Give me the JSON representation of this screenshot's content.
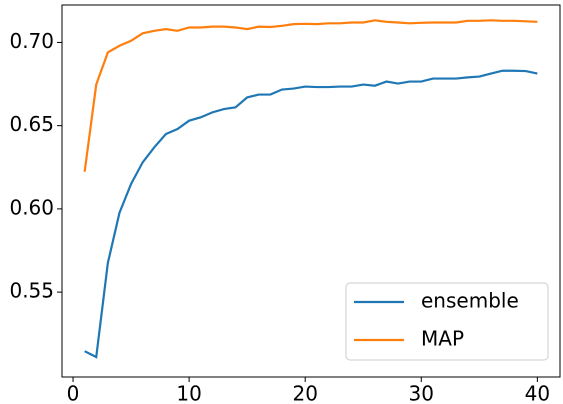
{
  "chart_data": {
    "type": "line",
    "x": [
      1,
      2,
      3,
      4,
      5,
      6,
      7,
      8,
      9,
      10,
      11,
      12,
      13,
      14,
      15,
      16,
      17,
      18,
      19,
      20,
      21,
      22,
      23,
      24,
      25,
      26,
      27,
      28,
      29,
      30,
      31,
      32,
      33,
      34,
      35,
      36,
      37,
      38,
      39,
      40
    ],
    "series": [
      {
        "name": "ensemble",
        "color": "#1f77b4",
        "values": [
          0.5145,
          0.511,
          0.5675,
          0.5976,
          0.615,
          0.628,
          0.637,
          0.645,
          0.648,
          0.653,
          0.655,
          0.658,
          0.66,
          0.661,
          0.667,
          0.6687,
          0.6687,
          0.6717,
          0.6723,
          0.6735,
          0.6732,
          0.6732,
          0.6735,
          0.6735,
          0.6747,
          0.674,
          0.6765,
          0.6753,
          0.6765,
          0.6765,
          0.6783,
          0.6783,
          0.6783,
          0.679,
          0.6795,
          0.6813,
          0.683,
          0.683,
          0.6828,
          0.6813
        ]
      },
      {
        "name": "MAP",
        "color": "#ff7f0e",
        "values": [
          0.6223,
          0.6747,
          0.694,
          0.698,
          0.701,
          0.7055,
          0.707,
          0.708,
          0.707,
          0.709,
          0.709,
          0.7095,
          0.7095,
          0.709,
          0.708,
          0.7095,
          0.7093,
          0.71,
          0.711,
          0.7112,
          0.711,
          0.7115,
          0.7115,
          0.712,
          0.712,
          0.7133,
          0.7124,
          0.712,
          0.7115,
          0.7118,
          0.712,
          0.712,
          0.712,
          0.713,
          0.713,
          0.7133,
          0.713,
          0.713,
          0.7127,
          0.7124
        ]
      }
    ],
    "xlim": [
      -0.95,
      41.95
    ],
    "xticks": [
      0,
      10,
      20,
      30,
      40
    ],
    "ylim": [
      0.499,
      0.7225
    ],
    "yticks": [
      0.55,
      {
        "value": 0.6,
        "label": "0.60"
      },
      0.65,
      {
        "value": 0.7,
        "label": "0.70"
      }
    ],
    "legend": "lower right"
  }
}
